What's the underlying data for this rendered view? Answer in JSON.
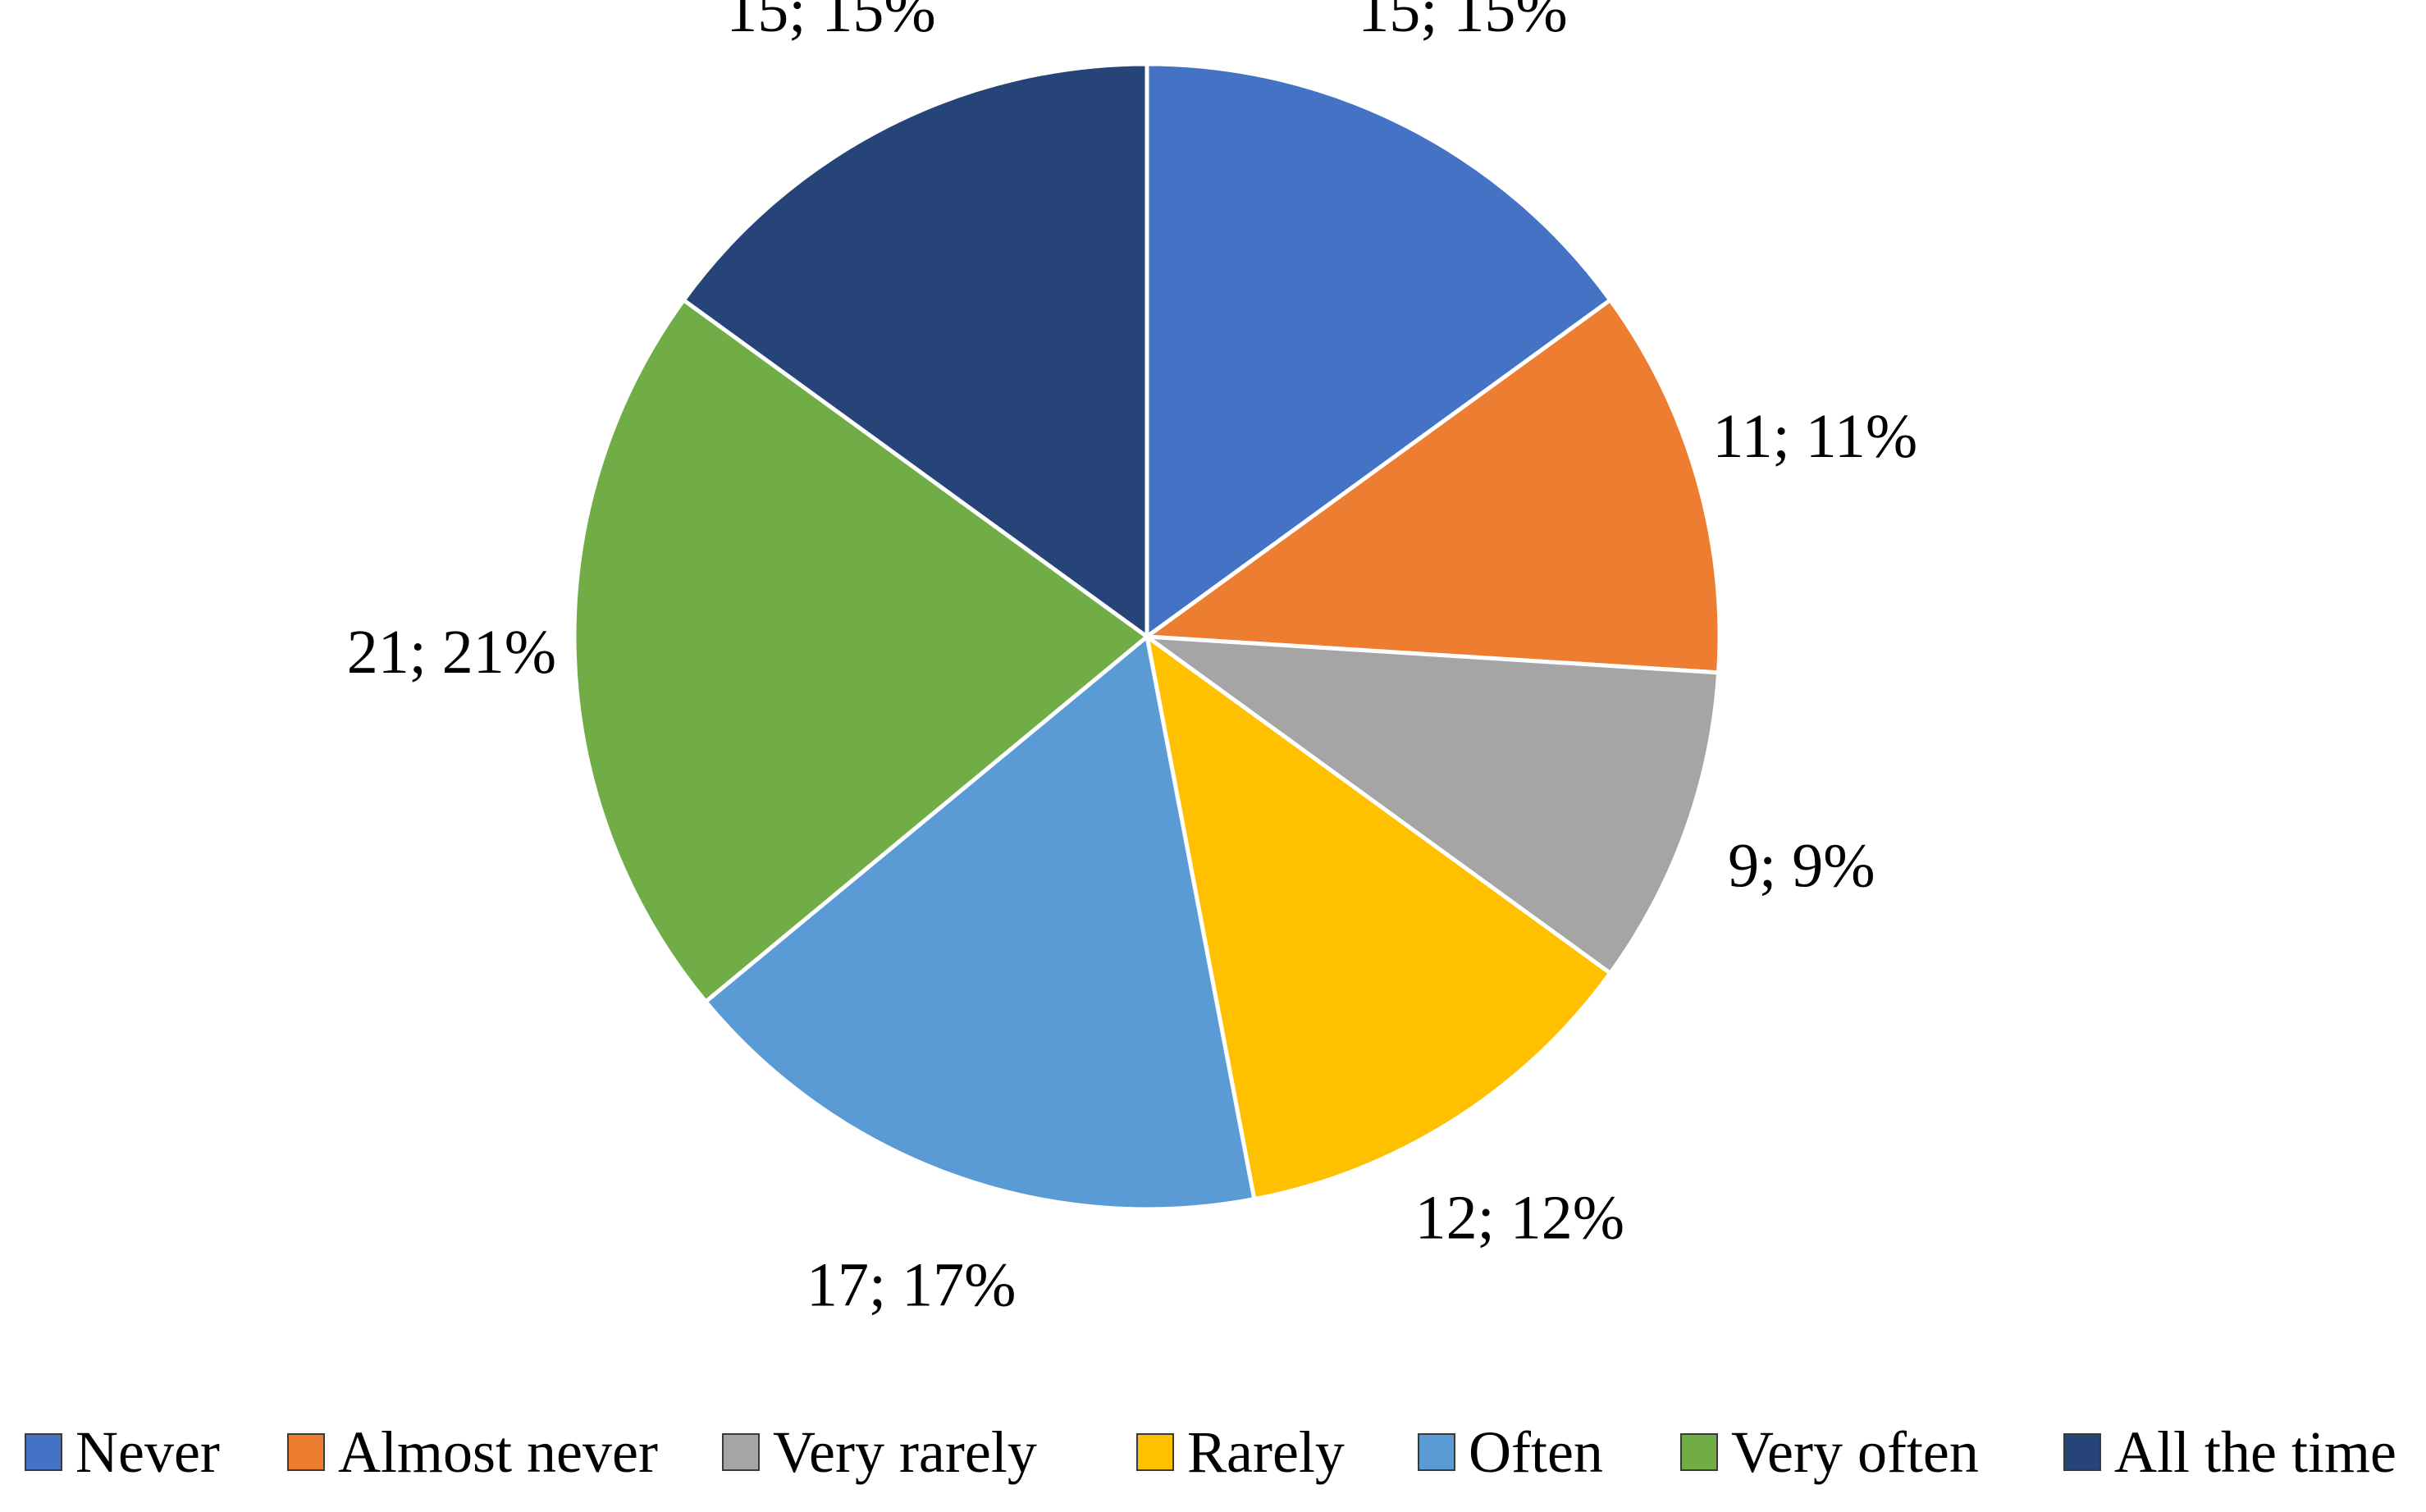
{
  "chart_data": {
    "type": "pie",
    "title": "",
    "start": "top",
    "direction": "clockwise",
    "legend_position": "bottom",
    "slices": [
      {
        "name": "Never",
        "value": 15,
        "percent": 15,
        "label": "15; 15%",
        "color": "#4472C4"
      },
      {
        "name": "Almost never",
        "value": 11,
        "percent": 11,
        "label": "11; 11%",
        "color": "#ED7D31"
      },
      {
        "name": "Very rarely",
        "value": 9,
        "percent": 9,
        "label": "9; 9%",
        "color": "#A5A5A5"
      },
      {
        "name": "Rarely",
        "value": 12,
        "percent": 12,
        "label": "12; 12%",
        "color": "#FFC000"
      },
      {
        "name": "Often",
        "value": 17,
        "percent": 17,
        "label": "17; 17%",
        "color": "#5B9BD5"
      },
      {
        "name": "Very often",
        "value": 21,
        "percent": 21,
        "label": "21; 21%",
        "color": "#70AD47"
      },
      {
        "name": "All the time",
        "value": 15,
        "percent": 15,
        "label": "15; 15%",
        "color": "#264478"
      }
    ]
  }
}
